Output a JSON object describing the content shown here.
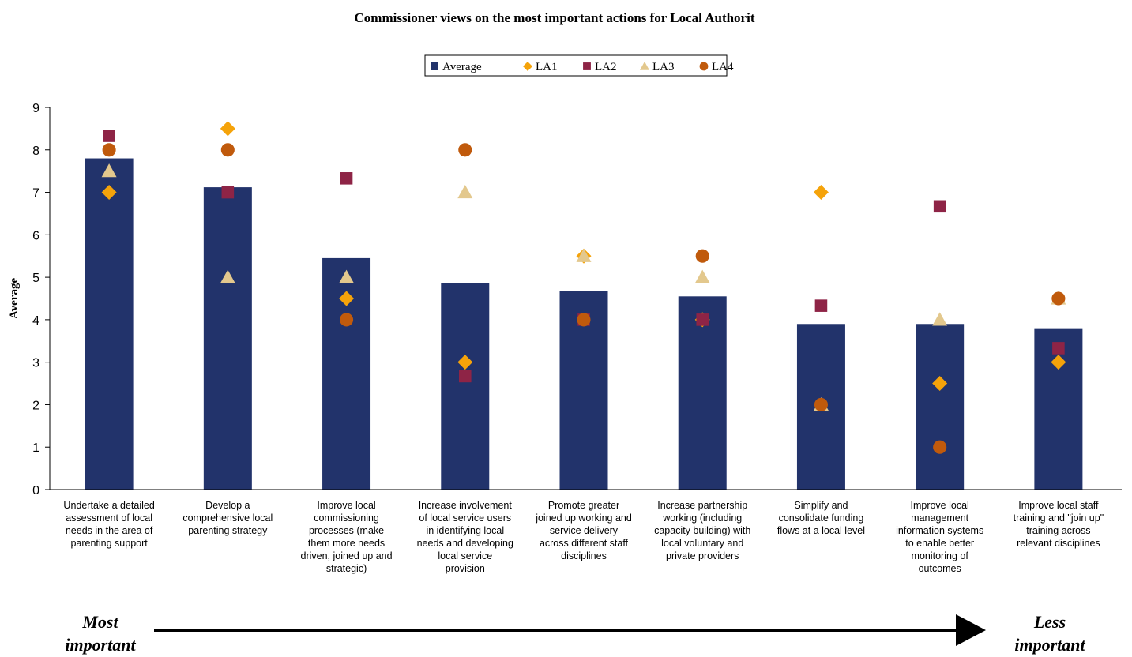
{
  "chart_data": {
    "type": "bar",
    "title": "Commissioner views on the most important actions for Local Authorit",
    "ylabel": "Average",
    "ylim": [
      0,
      9
    ],
    "yticks": [
      0,
      1,
      2,
      3,
      4,
      5,
      6,
      7,
      8,
      9
    ],
    "grid": false,
    "legend_position": "top",
    "categories": [
      [
        "Undertake a detailed",
        "assessment of local",
        "needs in the area of",
        "parenting support"
      ],
      [
        "Develop a",
        "comprehensive local",
        "parenting strategy"
      ],
      [
        "Improve local",
        "commissioning",
        "processes (make",
        "them more needs",
        "driven, joined up and",
        "strategic)"
      ],
      [
        "Increase involvement",
        "of local service users",
        "in identifying local",
        "needs and developing",
        "local service",
        "provision"
      ],
      [
        "Promote greater",
        "joined up working and",
        "service delivery",
        "across different staff",
        "disciplines"
      ],
      [
        "Increase partnership",
        "working (including",
        "capacity building) with",
        "local voluntary and",
        "private providers"
      ],
      [
        "Simplify and",
        "consolidate funding",
        "flows at a local level"
      ],
      [
        "Improve local",
        "management",
        "information systems",
        "to enable better",
        "monitoring of",
        "outcomes"
      ],
      [
        "Improve local staff",
        "training and \"join up\"",
        "training across",
        "relevant disciplines"
      ]
    ],
    "series": [
      {
        "name": "Average",
        "kind": "bar",
        "marker": "square",
        "color": "#22336b",
        "values": [
          7.8,
          7.12,
          5.45,
          4.87,
          4.67,
          4.55,
          3.9,
          3.9,
          3.8
        ]
      },
      {
        "name": "LA1",
        "kind": "scatter",
        "marker": "diamond",
        "color": "#f5a30a",
        "values": [
          7.0,
          8.5,
          4.5,
          3.0,
          5.5,
          4.0,
          7.0,
          2.5,
          3.0
        ]
      },
      {
        "name": "LA2",
        "kind": "scatter",
        "marker": "square",
        "color": "#8e2446",
        "values": [
          8.33,
          7.0,
          7.33,
          2.67,
          4.0,
          4.0,
          4.33,
          6.67,
          3.33
        ]
      },
      {
        "name": "LA3",
        "kind": "scatter",
        "marker": "triangle",
        "color": "#e3c88d",
        "values": [
          7.5,
          5.0,
          5.0,
          7.0,
          5.5,
          5.0,
          2.0,
          4.0,
          4.5
        ]
      },
      {
        "name": "LA4",
        "kind": "scatter",
        "marker": "circle",
        "color": "#c05a0c",
        "values": [
          8.0,
          8.0,
          4.0,
          8.0,
          4.0,
          5.5,
          2.0,
          1.0,
          4.5
        ]
      }
    ],
    "annotations": {
      "left": [
        "Most",
        "important"
      ],
      "right": [
        "Less",
        "important"
      ]
    }
  }
}
